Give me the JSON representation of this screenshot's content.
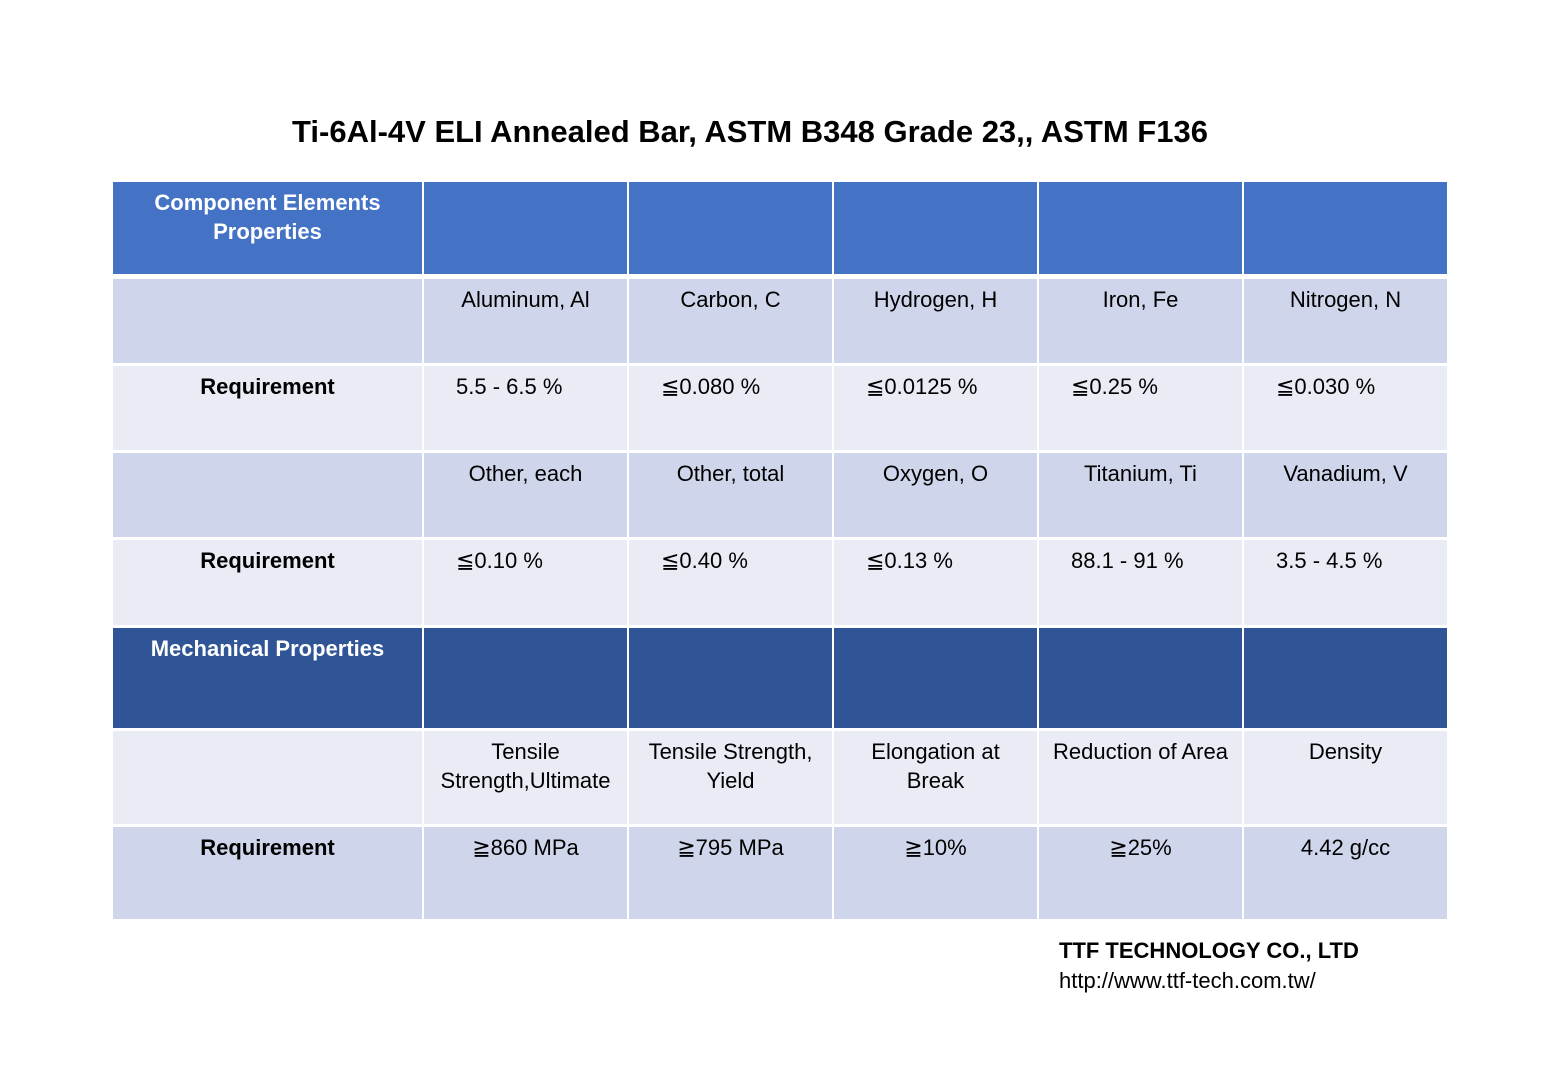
{
  "header": {
    "title": "Ti-6Al-4V ELI  Annealed Bar, ASTM B348 Grade 23,, ASTM F136"
  },
  "table": {
    "rows": [
      {
        "header": "Component Elements Properties"
      },
      {
        "cells": [
          "Aluminum, Al",
          "Carbon, C",
          "Hydrogen, H",
          "Iron, Fe",
          "Nitrogen, N"
        ]
      },
      {
        "label": "Requirement",
        "cells": [
          "5.5 - 6.5 %",
          "≦0.080 %",
          "≦0.0125 %",
          "≦0.25 %",
          "≦0.030 %"
        ]
      },
      {
        "cells": [
          "Other, each",
          "Other, total",
          "Oxygen, O",
          "Titanium, Ti",
          "Vanadium, V"
        ]
      },
      {
        "label": "Requirement",
        "cells": [
          "≦0.10 %",
          "≦0.40 %",
          "≦0.13 %",
          "88.1 - 91 %",
          "3.5 - 4.5 %"
        ]
      },
      {
        "header": "Mechanical Properties"
      },
      {
        "cells": [
          "Tensile Strength,Ultimate",
          "Tensile Strength, Yield",
          "Elongation at Break",
          "Reduction of Area",
          "Density"
        ]
      },
      {
        "label": "Requirement",
        "cells": [
          "≧860 MPa",
          "≧795 MPa",
          "≧10%",
          "≧25%",
          "4.42 g/cc"
        ]
      }
    ]
  },
  "footer": {
    "company": "TTF TECHNOLOGY CO., LTD",
    "url": "http://www.ttf-tech.com.tw/"
  }
}
